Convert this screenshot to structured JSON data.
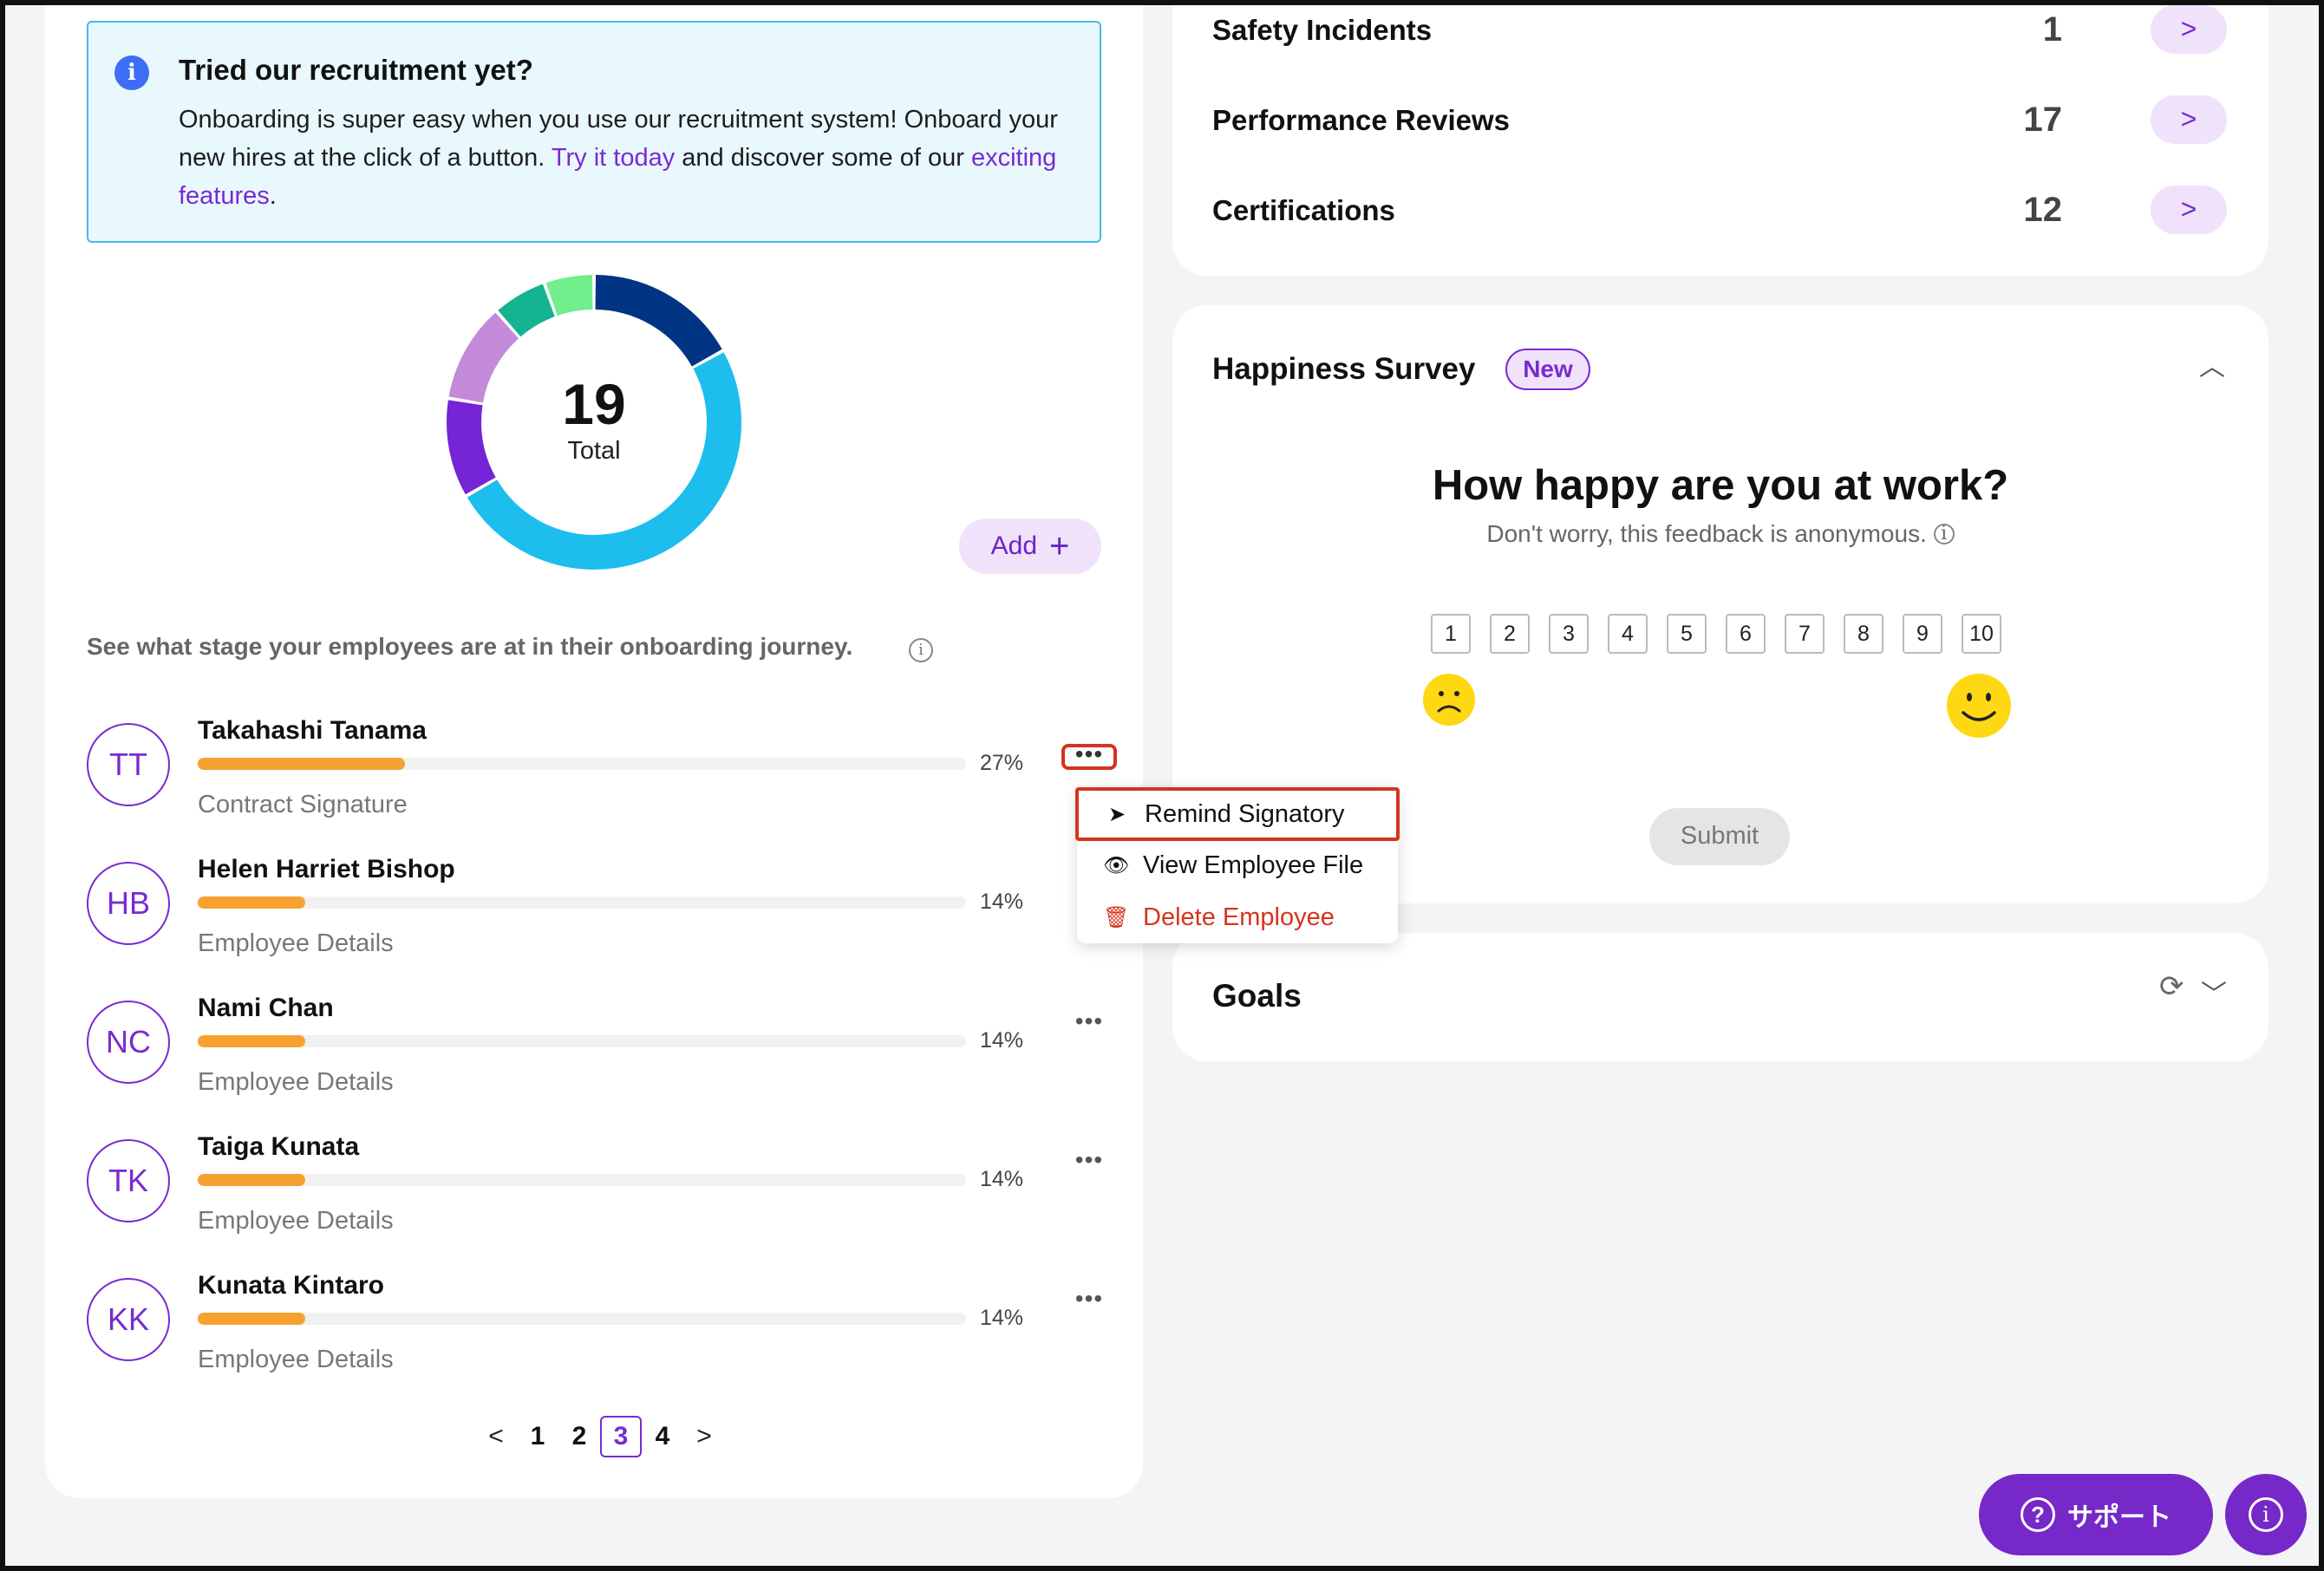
{
  "banner": {
    "icon": "info-icon",
    "title": "Tried our recruitment yet?",
    "text_1": "Onboarding is super easy when you use our recruitment system! Onboard your new hires at the click of a button. ",
    "link_1": "Try it today",
    "text_2": " and discover some of our ",
    "link_2": "exciting features",
    "text_3": "."
  },
  "onboarding": {
    "total_value": "19",
    "total_label": "Total",
    "add_label": "Add",
    "hint": "See what stage your employees are at in their onboarding journey.",
    "donut_colors": [
      "#003584",
      "#1dbdee",
      "#7524d6",
      "#c38ad9",
      "#14b391",
      "#72ee8c"
    ],
    "donut_fractions": [
      0.155,
      0.455,
      0.1,
      0.1,
      0.055,
      0.05
    ]
  },
  "employees": [
    {
      "initials": "TT",
      "name": "Takahashi Tanama",
      "progress": 27,
      "pct_label": "27%",
      "stage": "Contract Signature"
    },
    {
      "initials": "HB",
      "name": "Helen Harriet Bishop",
      "progress": 14,
      "pct_label": "14%",
      "stage": "Employee Details"
    },
    {
      "initials": "NC",
      "name": "Nami Chan",
      "progress": 14,
      "pct_label": "14%",
      "stage": "Employee Details"
    },
    {
      "initials": "TK",
      "name": "Taiga Kunata",
      "progress": 14,
      "pct_label": "14%",
      "stage": "Employee Details"
    },
    {
      "initials": "KK",
      "name": "Kunata Kintaro",
      "progress": 14,
      "pct_label": "14%",
      "stage": "Employee Details"
    }
  ],
  "row_menu": {
    "remind": "Remind Signatory",
    "view": "View Employee File",
    "delete": "Delete Employee"
  },
  "pagination": {
    "prev": "<",
    "pages": [
      "1",
      "2",
      "3",
      "4"
    ],
    "current": "3",
    "next": ">"
  },
  "stats": [
    {
      "label": "Safety Incidents",
      "value": "1",
      "arrow": ">"
    },
    {
      "label": "Performance Reviews",
      "value": "17",
      "arrow": ">"
    },
    {
      "label": "Certifications",
      "value": "12",
      "arrow": ">"
    }
  ],
  "survey": {
    "title": "Happiness Survey",
    "badge": "New",
    "question": "How happy are you at work?",
    "subtitle": "Don't worry, this feedback is anonymous.",
    "scale": [
      "1",
      "2",
      "3",
      "4",
      "5",
      "6",
      "7",
      "8",
      "9",
      "10"
    ],
    "submit": "Submit"
  },
  "goals": {
    "title": "Goals"
  },
  "support": {
    "label": "サポート",
    "q_glyph": "?",
    "info_glyph": "i"
  },
  "colors": {
    "accent": "#7628c9",
    "progress": "#f6a130",
    "highlight": "#d5341d"
  }
}
